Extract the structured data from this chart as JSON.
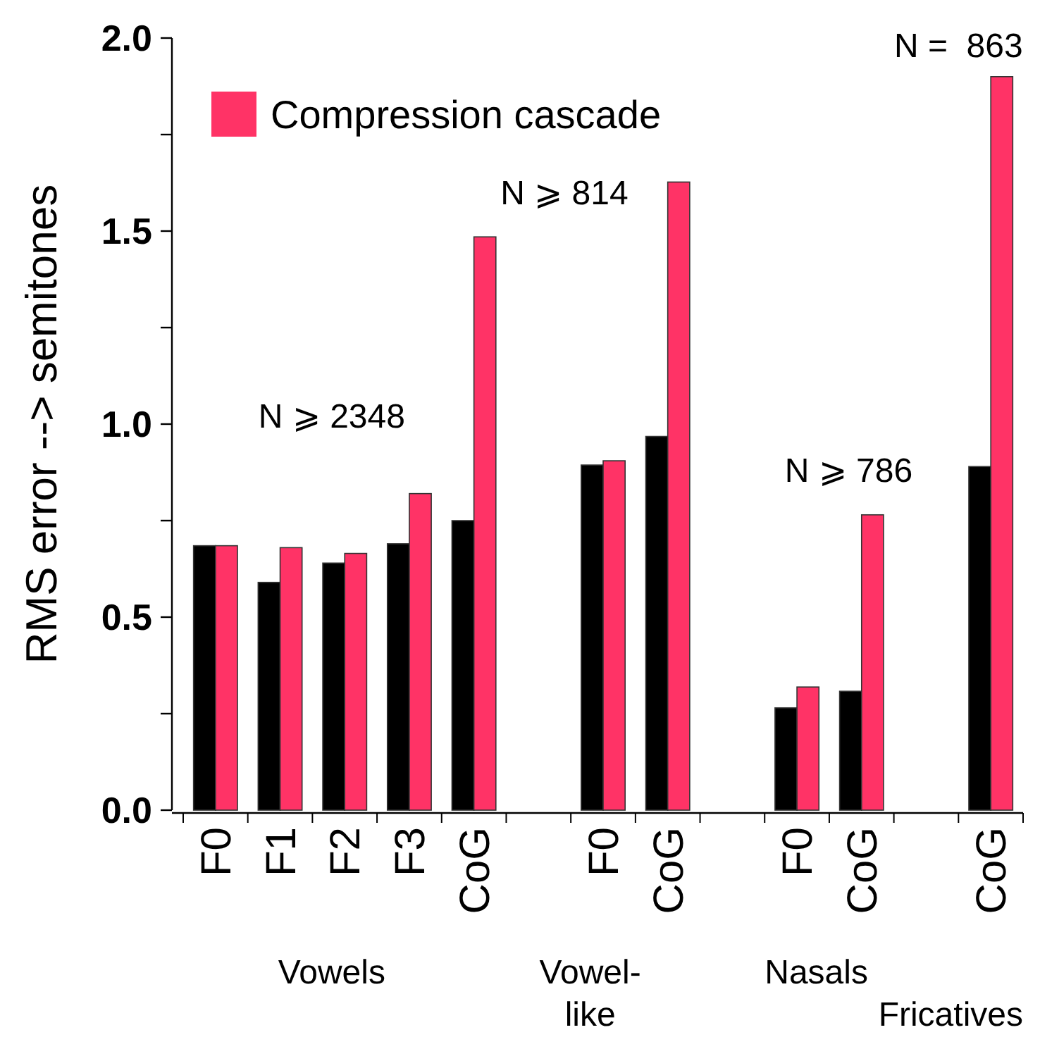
{
  "chart_data": {
    "type": "bar",
    "ylabel": "RMS error --> semitones",
    "categories": [
      "F0",
      "F1",
      "F2",
      "F3",
      "CoG",
      null,
      "F0",
      "CoG",
      null,
      "F0",
      "CoG",
      null,
      "CoG"
    ],
    "series": [
      {
        "color": "#000000",
        "values": [
          0.685,
          0.59,
          0.64,
          0.69,
          0.75,
          null,
          0.894,
          0.968,
          null,
          0.265,
          0.308,
          null,
          0.89
        ]
      },
      {
        "name": "Compression cascade",
        "color": "#ff3366",
        "values": [
          0.685,
          0.68,
          0.665,
          0.82,
          1.485,
          null,
          0.905,
          1.627,
          null,
          0.319,
          0.765,
          null,
          1.9
        ]
      }
    ],
    "ylim": [
      0,
      2
    ],
    "yticks": [
      {
        "value": 0,
        "label": "0.0"
      },
      {
        "value": 0.25,
        "label": null
      },
      0.5,
      {
        "value": 0.75,
        "label": null
      },
      {
        "value": 1,
        "label": "1.0"
      },
      {
        "value": 1.25,
        "label": null
      },
      1.5,
      {
        "value": 1.75,
        "label": null
      },
      {
        "value": 2,
        "label": "2.0"
      }
    ],
    "legend": "top left",
    "grid": false,
    "annotations": [
      "N ⩾ 2348",
      "N ⩾ 814",
      "N ⩾ 786",
      "N =  863",
      "Vowels",
      "Vowel-like",
      "Nasals",
      "Fricatives"
    ]
  }
}
